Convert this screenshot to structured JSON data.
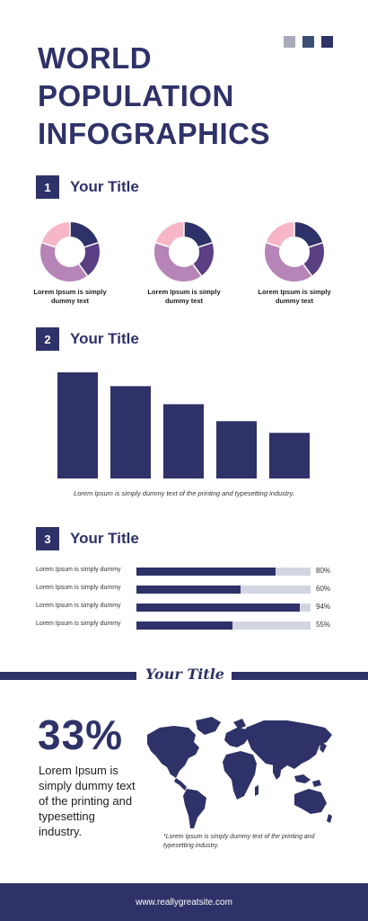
{
  "colors": {
    "navy": "#2e3268",
    "purple": "#5a3f84",
    "mauve": "#b684b7",
    "pink": "#f6b6c6",
    "track": "#d3d6e2",
    "swatches": [
      "#a9abba",
      "#3b4f74",
      "#2e3268"
    ]
  },
  "header": {
    "title_lines": [
      "WORLD",
      "POPULATION",
      "INFOGRAPHICS"
    ]
  },
  "section1": {
    "number": "1",
    "title": "Your Title",
    "donuts": [
      {
        "caption": "Lorem Ipsum is simply\ndummy text"
      },
      {
        "caption": "Lorem Ipsum is simply\ndummy text"
      },
      {
        "caption": "Lorem Ipsum is simply\ndummy text"
      }
    ]
  },
  "section2": {
    "number": "2",
    "title": "Your Title",
    "caption": "Lorem Ipsum is simply dummy text of the printing and typesetting industry."
  },
  "section3": {
    "number": "3",
    "title": "Your Title",
    "rows": [
      {
        "label": "Lorem Ipsum is simply dummy",
        "percent_text": "80%"
      },
      {
        "label": "Lorem Ipsum is simply dummy",
        "percent_text": "60%"
      },
      {
        "label": "Lorem Ipsum is simply dummy",
        "percent_text": "94%"
      },
      {
        "label": "Lorem Ipsum is simply dummy",
        "percent_text": "55%"
      }
    ]
  },
  "section4": {
    "title": "Your Title",
    "big_percent": "33%",
    "text": "Lorem Ipsum is simply dummy text of the printing and typesetting industry.",
    "map_caption": "*Lorem Ipsum is simply dummy text of the printing and typesetting industry."
  },
  "footer": {
    "url": "www.reallygreatsite.com"
  },
  "chart_data": [
    {
      "type": "pie",
      "donut": true,
      "slices": [
        {
          "color": "#2e3268",
          "value": 20
        },
        {
          "color": "#5a3f84",
          "value": 20
        },
        {
          "color": "#b684b7",
          "value": 40
        },
        {
          "color": "#f6b6c6",
          "value": 20
        }
      ]
    },
    {
      "type": "pie",
      "donut": true,
      "slices": [
        {
          "color": "#2e3268",
          "value": 20
        },
        {
          "color": "#5a3f84",
          "value": 20
        },
        {
          "color": "#b684b7",
          "value": 40
        },
        {
          "color": "#f6b6c6",
          "value": 20
        }
      ]
    },
    {
      "type": "pie",
      "donut": true,
      "slices": [
        {
          "color": "#2e3268",
          "value": 20
        },
        {
          "color": "#5a3f84",
          "value": 20
        },
        {
          "color": "#b684b7",
          "value": 40
        },
        {
          "color": "#f6b6c6",
          "value": 20
        }
      ]
    },
    {
      "type": "bar",
      "values": [
        100,
        87,
        70,
        54,
        43
      ],
      "ylim": [
        0,
        100
      ],
      "color": "#2e3268"
    },
    {
      "type": "bar",
      "orientation": "horizontal",
      "values": [
        80,
        60,
        94,
        55
      ],
      "xlim": [
        0,
        100
      ],
      "color": "#2e3268"
    }
  ]
}
